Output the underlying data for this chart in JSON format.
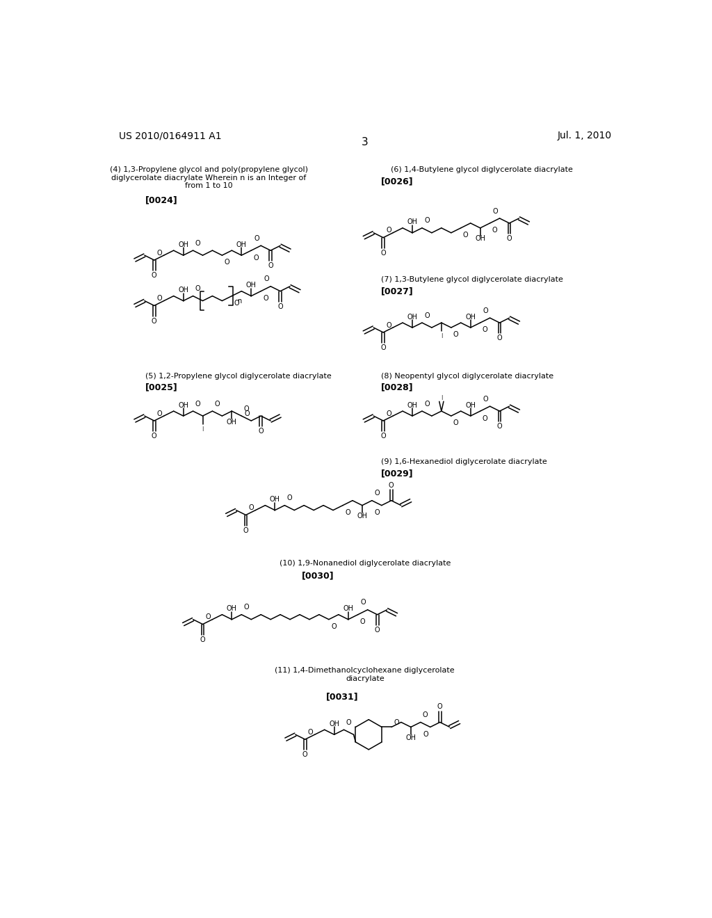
{
  "background_color": "#ffffff",
  "header_left": "US 2010/0164911 A1",
  "header_right": "Jul. 1, 2010",
  "page_number": "3",
  "label4": "(4) 1,3-Propylene glycol and poly(propylene glycol)\ndiglycerolate diacrylate Wherein n is an Integer of\nfrom 1 to 10",
  "ref4": "[0024]",
  "label6": "(6) 1,4-Butylene glycol diglycerolate diacrylate",
  "ref6": "[0026]",
  "label7": "(7) 1,3-Butylene glycol diglycerolate diacrylate",
  "ref7": "[0027]",
  "label5": "(5) 1,2-Propylene glycol diglycerolate diacrylate",
  "ref5": "[0025]",
  "label8": "(8) Neopentyl glycol diglycerolate diacrylate",
  "ref8": "[0028]",
  "label9": "(9) 1,6-Hexanediol diglycerolate diacrylate",
  "ref9": "[0029]",
  "label10": "(10) 1,9-Nonanediol diglycerolate diacrylate",
  "ref10": "[0030]",
  "label11": "(11) 1,4-Dimethanolcyclohexane diglycerolate\ndiacrylate",
  "ref11": "[0031]"
}
